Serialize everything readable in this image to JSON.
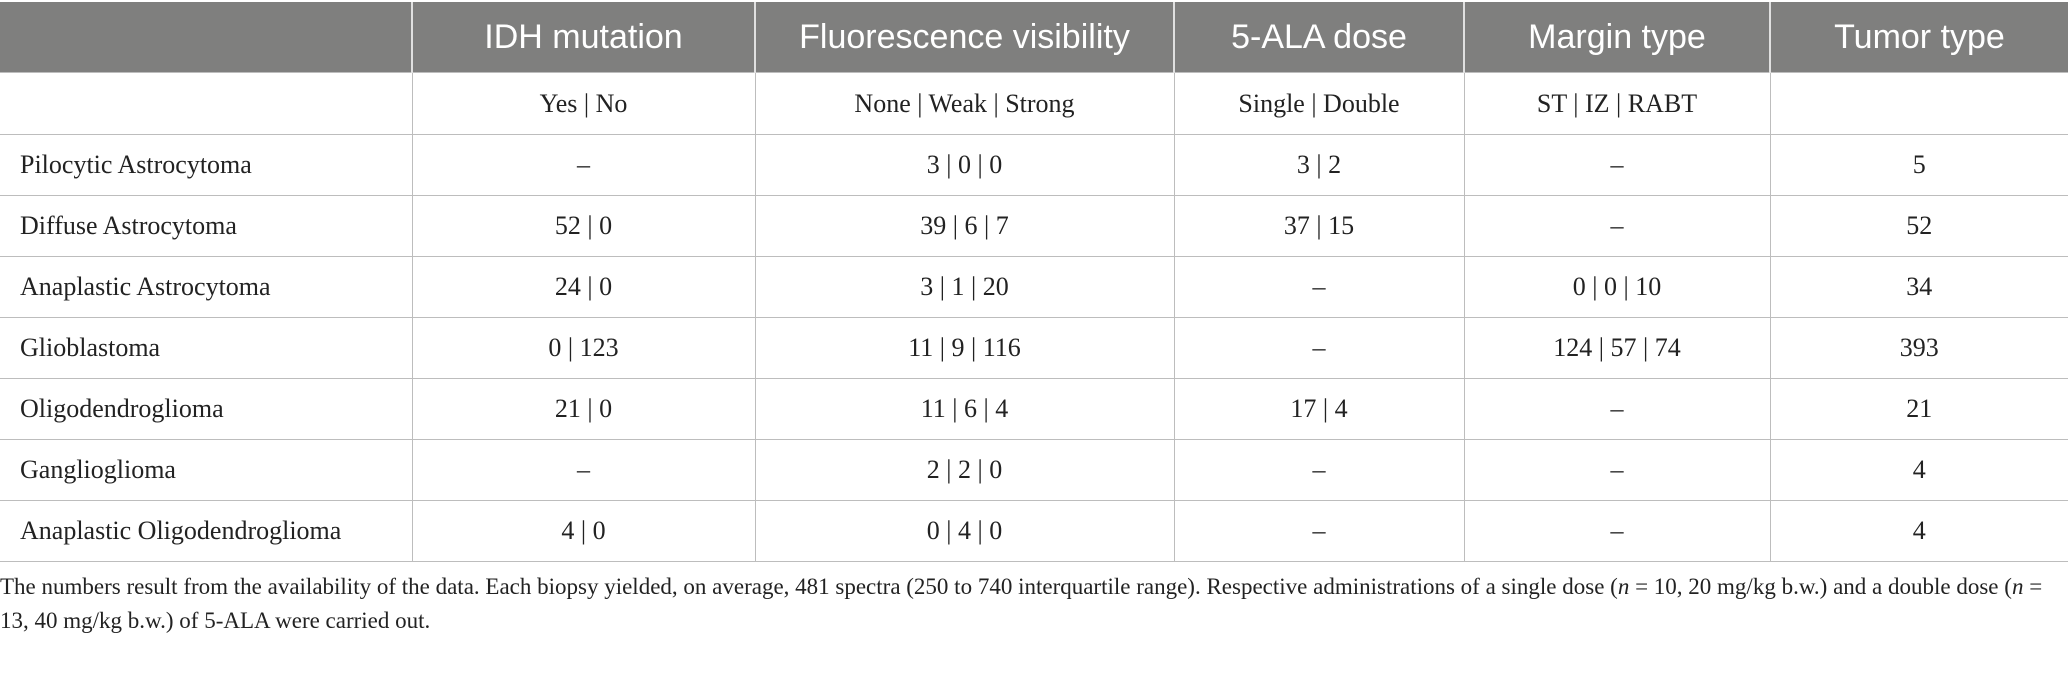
{
  "columns": [
    "",
    "IDH mutation",
    "Fluorescence visibility",
    "5-ALA dose",
    "Margin type",
    "Tumor type"
  ],
  "subheader": [
    "",
    "Yes | No",
    "None | Weak | Strong",
    "Single | Double",
    "ST | IZ | RABT",
    ""
  ],
  "rows": [
    {
      "name": "Pilocytic Astrocytoma",
      "idh": "–",
      "fluorescence": "3 | 0 | 0",
      "dose": "3 | 2",
      "margin": "–",
      "tumor": "5"
    },
    {
      "name": "Diffuse Astrocytoma",
      "idh": "52 | 0",
      "fluorescence": "39 | 6 | 7",
      "dose": "37 | 15",
      "margin": "–",
      "tumor": "52"
    },
    {
      "name": "Anaplastic Astrocytoma",
      "idh": "24 | 0",
      "fluorescence": "3 | 1 | 20",
      "dose": "–",
      "margin": "0 | 0 | 10",
      "tumor": "34"
    },
    {
      "name": "Glioblastoma",
      "idh": "0 | 123",
      "fluorescence": "11 | 9 | 116",
      "dose": "–",
      "margin": "124 | 57 | 74",
      "tumor": "393"
    },
    {
      "name": "Oligodendroglioma",
      "idh": "21 | 0",
      "fluorescence": "11 | 6 | 4",
      "dose": "17 | 4",
      "margin": "–",
      "tumor": "21"
    },
    {
      "name": "Ganglioglioma",
      "idh": "–",
      "fluorescence": "2 | 2 | 0",
      "dose": "–",
      "margin": "–",
      "tumor": "4"
    },
    {
      "name": "Anaplastic Oligodendroglioma",
      "idh": "4 | 0",
      "fluorescence": "0 | 4 | 0",
      "dose": "–",
      "margin": "–",
      "tumor": "4"
    }
  ],
  "note": {
    "part1": "The numbers result from the availability of the data. Each biopsy yielded, on average, 481 spectra (250 to 740 interquartile range). Respective administrations of a single dose (",
    "n1": "n",
    "part2": " = 10, 20 mg/kg b.w.) and a double dose (",
    "n2": "n",
    "part3": " = 13, 40 mg/kg b.w.) of 5-ALA were carried out."
  }
}
